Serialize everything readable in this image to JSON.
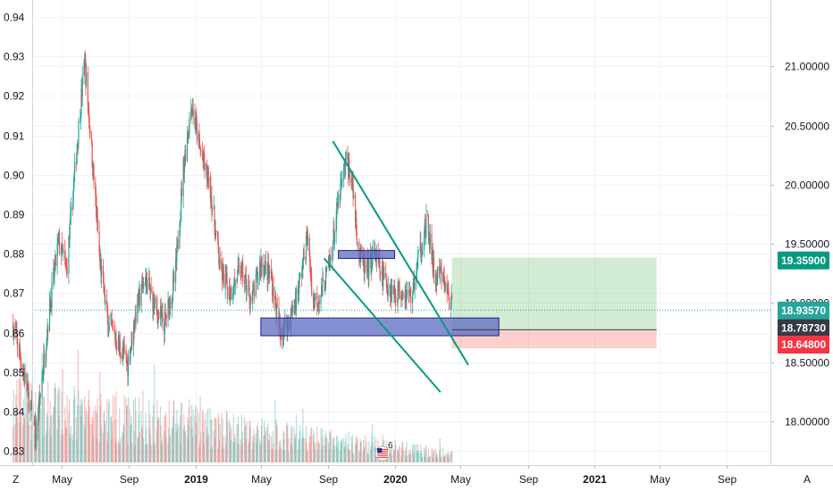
{
  "chart_data": {
    "type": "candlestick",
    "left_axis": {
      "ticks": [
        0.83,
        0.84,
        0.85,
        0.86,
        0.87,
        0.88,
        0.89,
        0.9,
        0.91,
        0.92,
        0.93,
        0.94
      ],
      "labels": [
        "0.83",
        "0.84",
        "0.85",
        "0.86",
        "0.87",
        "0.88",
        "0.89",
        "0.90",
        "0.91",
        "0.92",
        "0.93",
        "0.94"
      ],
      "range": [
        0.8264,
        0.9443
      ]
    },
    "right_axis": {
      "ticks": [
        18.0,
        18.5,
        19.0,
        19.5,
        20.0,
        20.5,
        21.0
      ],
      "labels": [
        "18.00000",
        "18.50000",
        "19.00000",
        "19.50000",
        "20.00000",
        "20.50000",
        "21.00000"
      ],
      "range": [
        17.63,
        21.56
      ]
    },
    "x_axis": {
      "labels": [
        "May",
        "Sep",
        "2019",
        "May",
        "Sep",
        "2020",
        "May",
        "Sep",
        "2021",
        "May",
        "Sep"
      ],
      "dates": [
        "2018-05",
        "2018-09",
        "2019-01",
        "2019-05",
        "2019-09",
        "2020-01",
        "2020-05",
        "2020-09",
        "2021-01",
        "2021-05",
        "2021-09"
      ],
      "bold": [
        false,
        false,
        true,
        false,
        false,
        true,
        false,
        false,
        true,
        false,
        false
      ]
    },
    "price_tags": [
      {
        "label": "19.35900",
        "value": 19.359,
        "color": "#089981"
      },
      {
        "label": "18.93570",
        "value": 18.9357,
        "color": "#26a69a"
      },
      {
        "label": "18.78730",
        "value": 18.7873,
        "color": "#363a45"
      },
      {
        "label": "18.64800",
        "value": 18.648,
        "color": "#f23645"
      }
    ],
    "last_price": 0.8657,
    "series_trend": [
      [
        "2018-02-01",
        0.862
      ],
      [
        "2018-02-20",
        0.85
      ],
      [
        "2018-03-15",
        0.834
      ],
      [
        "2018-04-05",
        0.862
      ],
      [
        "2018-04-25",
        0.883
      ],
      [
        "2018-05-10",
        0.876
      ],
      [
        "2018-06-01",
        0.912
      ],
      [
        "2018-06-12",
        0.929
      ],
      [
        "2018-06-25",
        0.906
      ],
      [
        "2018-07-10",
        0.878
      ],
      [
        "2018-07-25",
        0.862
      ],
      [
        "2018-08-10",
        0.858
      ],
      [
        "2018-08-30",
        0.852
      ],
      [
        "2018-09-15",
        0.866
      ],
      [
        "2018-10-01",
        0.874
      ],
      [
        "2018-10-20",
        0.866
      ],
      [
        "2018-11-05",
        0.862
      ],
      [
        "2018-11-25",
        0.874
      ],
      [
        "2018-12-10",
        0.902
      ],
      [
        "2018-12-25",
        0.918
      ],
      [
        "2019-01-10",
        0.906
      ],
      [
        "2019-01-28",
        0.897
      ],
      [
        "2019-02-15",
        0.876
      ],
      [
        "2019-03-05",
        0.87
      ],
      [
        "2019-03-25",
        0.876
      ],
      [
        "2019-04-15",
        0.868
      ],
      [
        "2019-05-01",
        0.878
      ],
      [
        "2019-05-20",
        0.874
      ],
      [
        "2019-06-05",
        0.86
      ],
      [
        "2019-06-25",
        0.864
      ],
      [
        "2019-07-10",
        0.872
      ],
      [
        "2019-07-25",
        0.884
      ],
      [
        "2019-08-05",
        0.868
      ],
      [
        "2019-08-20",
        0.87
      ],
      [
        "2019-09-05",
        0.878
      ],
      [
        "2019-09-20",
        0.893
      ],
      [
        "2019-10-05",
        0.904
      ],
      [
        "2019-10-15",
        0.898
      ],
      [
        "2019-10-28",
        0.88
      ],
      [
        "2019-11-10",
        0.875
      ],
      [
        "2019-11-25",
        0.88
      ],
      [
        "2019-12-10",
        0.874
      ],
      [
        "2020-01-01",
        0.87
      ],
      [
        "2020-01-15",
        0.871
      ],
      [
        "2020-02-01",
        0.869
      ],
      [
        "2020-02-15",
        0.88
      ],
      [
        "2020-03-01",
        0.888
      ],
      [
        "2020-03-15",
        0.873
      ],
      [
        "2020-03-25",
        0.875
      ],
      [
        "2020-04-05",
        0.871
      ],
      [
        "2020-04-15",
        0.866
      ]
    ],
    "zones": [
      {
        "kind": "demand",
        "x0": "2019-05-01",
        "x1": "2020-07-10",
        "y0": 0.8592,
        "y1": 0.8637
      },
      {
        "kind": "supply",
        "x0": "2019-09-20",
        "x1": "2020-01-01",
        "y0": 0.8788,
        "y1": 0.8808
      },
      {
        "kind": "profit",
        "x0": "2020-04-15",
        "x1": "2021-04-25",
        "y0": 0.8607,
        "y1": 0.879
      },
      {
        "kind": "loss",
        "x0": "2020-04-15",
        "x1": "2021-04-25",
        "y0": 0.856,
        "y1": 0.8607
      }
    ],
    "trendlines": [
      {
        "x0": "2019-09-10",
        "y0": 0.9085,
        "x1": "2020-05-15",
        "y1": 0.8518
      },
      {
        "x0": "2019-08-25",
        "y0": 0.8788,
        "x1": "2020-03-25",
        "y1": 0.8449
      }
    ],
    "annotations": {
      "event_badge_count": "6",
      "axis_mode": "A",
      "zoom_label": "Z"
    }
  }
}
